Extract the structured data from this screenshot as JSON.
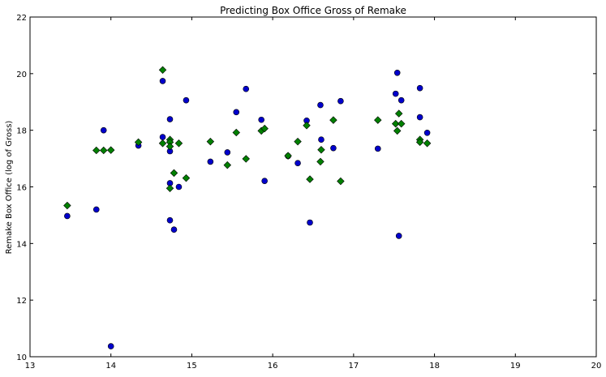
{
  "chart_data": {
    "type": "scatter",
    "title": "Predicting Box Office Gross of Remake",
    "xlabel": "",
    "ylabel": "Remake Box Office (log of Gross)",
    "xlim": [
      13,
      20
    ],
    "ylim": [
      10,
      22
    ],
    "xticks": [
      "13",
      "14",
      "15",
      "16",
      "17",
      "18",
      "19",
      "20"
    ],
    "yticks": [
      "10",
      "12",
      "14",
      "16",
      "18",
      "20",
      "22"
    ],
    "grid": false,
    "legend": "none",
    "series": [
      {
        "marker": "circle",
        "color": "#0000cc",
        "points": [
          [
            13.46,
            14.97
          ],
          [
            13.82,
            15.2
          ],
          [
            13.91,
            18.0
          ],
          [
            14.0,
            10.37
          ],
          [
            14.34,
            17.46
          ],
          [
            14.64,
            19.74
          ],
          [
            14.64,
            17.76
          ],
          [
            14.73,
            18.39
          ],
          [
            14.73,
            17.26
          ],
          [
            14.73,
            16.13
          ],
          [
            14.73,
            14.82
          ],
          [
            14.78,
            14.49
          ],
          [
            14.84,
            16.0
          ],
          [
            14.93,
            19.06
          ],
          [
            15.23,
            16.89
          ],
          [
            15.44,
            17.22
          ],
          [
            15.55,
            18.64
          ],
          [
            15.67,
            19.46
          ],
          [
            15.86,
            18.37
          ],
          [
            15.9,
            16.21
          ],
          [
            16.19,
            17.09
          ],
          [
            16.31,
            16.84
          ],
          [
            16.42,
            18.34
          ],
          [
            16.46,
            14.74
          ],
          [
            16.59,
            18.89
          ],
          [
            16.6,
            17.67
          ],
          [
            16.75,
            17.37
          ],
          [
            16.84,
            19.03
          ],
          [
            17.3,
            17.35
          ],
          [
            17.52,
            19.29
          ],
          [
            17.54,
            20.03
          ],
          [
            17.56,
            14.27
          ],
          [
            17.59,
            19.06
          ],
          [
            17.82,
            19.49
          ],
          [
            17.82,
            18.46
          ],
          [
            17.91,
            17.91
          ]
        ]
      },
      {
        "marker": "diamond",
        "color": "#008000",
        "points": [
          [
            13.46,
            15.34
          ],
          [
            13.82,
            17.29
          ],
          [
            13.91,
            17.29
          ],
          [
            14.0,
            17.3
          ],
          [
            14.34,
            17.58
          ],
          [
            14.64,
            20.13
          ],
          [
            14.64,
            17.54
          ],
          [
            14.73,
            17.67
          ],
          [
            14.73,
            17.58
          ],
          [
            14.73,
            17.43
          ],
          [
            14.73,
            15.95
          ],
          [
            14.78,
            16.49
          ],
          [
            14.84,
            17.54
          ],
          [
            14.93,
            16.31
          ],
          [
            15.23,
            17.6
          ],
          [
            15.44,
            16.77
          ],
          [
            15.55,
            17.92
          ],
          [
            15.67,
            16.99
          ],
          [
            15.86,
            17.98
          ],
          [
            15.9,
            18.06
          ],
          [
            16.19,
            17.1
          ],
          [
            16.31,
            17.6
          ],
          [
            16.42,
            18.17
          ],
          [
            16.46,
            16.27
          ],
          [
            16.59,
            16.89
          ],
          [
            16.6,
            17.31
          ],
          [
            16.75,
            18.36
          ],
          [
            16.84,
            16.2
          ],
          [
            17.3,
            18.36
          ],
          [
            17.52,
            18.23
          ],
          [
            17.54,
            17.98
          ],
          [
            17.56,
            18.59
          ],
          [
            17.59,
            18.23
          ],
          [
            17.82,
            17.67
          ],
          [
            17.82,
            17.58
          ],
          [
            17.91,
            17.54
          ]
        ]
      }
    ]
  }
}
